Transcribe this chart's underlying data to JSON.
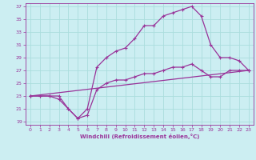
{
  "xlabel": "Windchill (Refroidissement éolien,°C)",
  "bg_color": "#cceef2",
  "grid_color": "#aadddd",
  "line_color": "#993399",
  "xlim": [
    -0.5,
    23.5
  ],
  "ylim": [
    18.5,
    37.5
  ],
  "xticks": [
    0,
    1,
    2,
    3,
    4,
    5,
    6,
    7,
    8,
    9,
    10,
    11,
    12,
    13,
    14,
    15,
    16,
    17,
    18,
    19,
    20,
    21,
    22,
    23
  ],
  "yticks": [
    19,
    21,
    23,
    25,
    27,
    29,
    31,
    33,
    35,
    37
  ],
  "line1_x": [
    0,
    1,
    2,
    3,
    4,
    5,
    6,
    7,
    8,
    9,
    10,
    11,
    12,
    13,
    14,
    15,
    16,
    17,
    18,
    19,
    20,
    21,
    22,
    23
  ],
  "line1_y": [
    23,
    23,
    23,
    23,
    21,
    19.5,
    21,
    27.5,
    29,
    30,
    30.5,
    32,
    34,
    34,
    35.5,
    36,
    36.5,
    37,
    35.5,
    31,
    29,
    29,
    28.5,
    27
  ],
  "line2_x": [
    0,
    1,
    2,
    3,
    4,
    5,
    6,
    7,
    8,
    9,
    10,
    11,
    12,
    13,
    14,
    15,
    16,
    17,
    18,
    19,
    20,
    21,
    22,
    23
  ],
  "line2_y": [
    23,
    23,
    23,
    22.5,
    21,
    19.5,
    20,
    24,
    25,
    25.5,
    25.5,
    26,
    26.5,
    26.5,
    27,
    27.5,
    27.5,
    28,
    27,
    26,
    26,
    27,
    27,
    27
  ],
  "line3_x": [
    0,
    23
  ],
  "line3_y": [
    23,
    27
  ]
}
